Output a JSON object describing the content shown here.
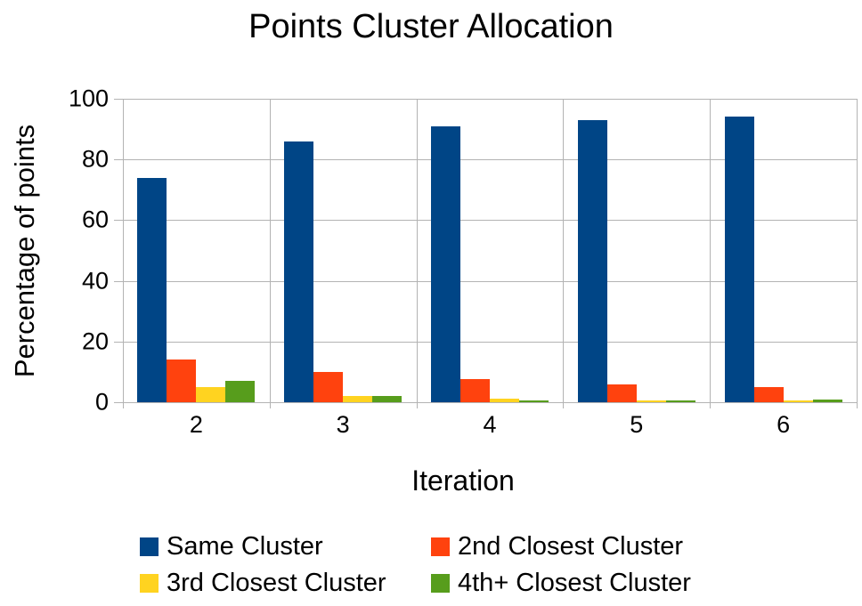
{
  "title": "Points Cluster Allocation",
  "chart_data": {
    "type": "bar",
    "title": "Points Cluster Allocation",
    "xlabel": "Iteration",
    "ylabel": "Percentage of points",
    "categories": [
      "2",
      "3",
      "4",
      "5",
      "6"
    ],
    "series": [
      {
        "name": "Same Cluster",
        "color": "#004586",
        "values": [
          74,
          86,
          91,
          93,
          94
        ]
      },
      {
        "name": "2nd Closest Cluster",
        "color": "#FF420E",
        "values": [
          14,
          10,
          7.5,
          6,
          5
        ]
      },
      {
        "name": "3rd Closest Cluster",
        "color": "#FFD320",
        "values": [
          5,
          2,
          1.2,
          0.7,
          0.5
        ]
      },
      {
        "name": "4th+ Closest Cluster",
        "color": "#579D1C",
        "values": [
          7,
          2.2,
          0.5,
          0.5,
          1
        ]
      }
    ],
    "ylim": [
      0,
      100
    ],
    "y_ticks": [
      0,
      20,
      40,
      60,
      80,
      100
    ],
    "grid": true,
    "legend_position": "bottom",
    "gridline_color": "#b3b3b3",
    "background_color": "#ffffff",
    "text_color": "#000000"
  }
}
